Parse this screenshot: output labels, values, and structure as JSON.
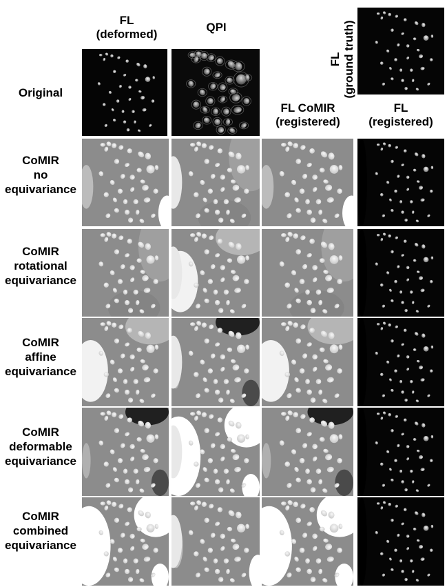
{
  "columns": {
    "fl_deformed": "FL\n(deformed)",
    "qpi": "QPI",
    "fl_ground_truth": "FL\n(ground truth)",
    "fl_comir_registered": "FL CoMIR\n(registered)",
    "fl_registered": "FL\n(registered)"
  },
  "rows": [
    {
      "id": "original",
      "label": "Original"
    },
    {
      "id": "no-eq",
      "label": "CoMIR\nno\nequivariance"
    },
    {
      "id": "rot-eq",
      "label": "CoMIR\nrotational\nequivariance"
    },
    {
      "id": "aff-eq",
      "label": "CoMIR\naffine\nequivariance"
    },
    {
      "id": "def-eq",
      "label": "CoMIR\ndeformable\nequivariance"
    },
    {
      "id": "comb-eq",
      "label": "CoMIR\ncombined\nequivariance"
    }
  ]
}
